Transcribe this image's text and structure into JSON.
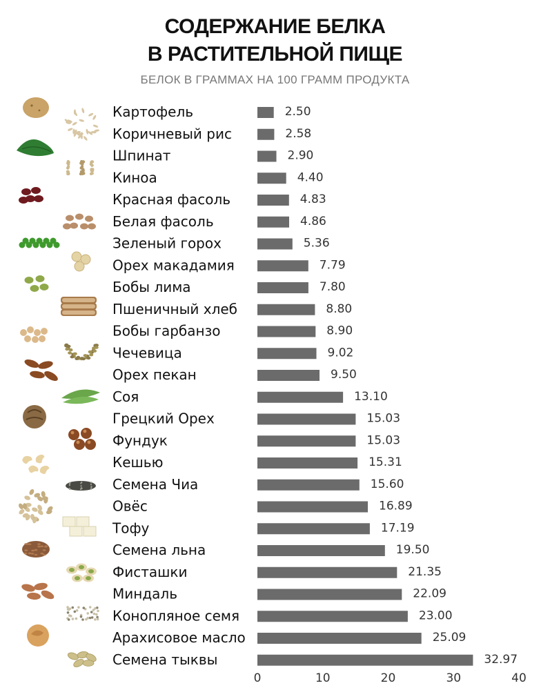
{
  "header": {
    "title_line1": "СОДЕРЖАНИЕ БЕЛКА",
    "title_line2": "В РАСТИТЕЛЬНОЙ  ПИЩЕ",
    "subtitle": "БЕЛОК В ГРАММАХ НА 100 ГРАММ ПРОДУКТА"
  },
  "chart_data": {
    "type": "bar",
    "orientation": "horizontal",
    "title": "СОДЕРЖАНИЕ БЕЛКА В РАСТИТЕЛЬНОЙ  ПИЩЕ",
    "subtitle": "БЕЛОК В ГРАММАХ НА 100 ГРАММ ПРОДУКТА",
    "categories": [
      "Картофель",
      "Коричневый рис",
      "Шпинат",
      "Киноа",
      "Красная фасоль",
      "Белая фасоль",
      "Зеленый горох",
      "Орех макадамия",
      "Бобы лима",
      "Пшеничный хлеб",
      "Бобы гарбанзо",
      "Чечевица",
      "Орех пекан",
      "Соя",
      "Грецкий Орех",
      "Фундук",
      "Кешью",
      "Семена Чиа",
      "Овёс",
      "Тофу",
      "Семена льна",
      "Фисташки",
      "Миндаль",
      "Конопляное семя",
      "Арахисовое масло",
      "Семена тыквы"
    ],
    "values": [
      2.5,
      2.58,
      2.9,
      4.4,
      4.83,
      4.86,
      5.36,
      7.79,
      7.8,
      8.8,
      8.9,
      9.02,
      9.5,
      13.1,
      15.03,
      15.03,
      15.31,
      15.6,
      16.89,
      17.19,
      19.5,
      21.35,
      22.09,
      23.0,
      25.09,
      32.97
    ],
    "value_labels": [
      "2.50",
      "2.58",
      "2.90",
      "4.40",
      "4.83",
      "4.86",
      "5.36",
      "7.79",
      "7.80",
      "8.80",
      "8.90",
      "9.02",
      "9.50",
      "13.10",
      "15.03",
      "15.03",
      "15.31",
      "15.60",
      "16.89",
      "17.19",
      "19.50",
      "21.35",
      "22.09",
      "23.00",
      "25.09",
      "32.97"
    ],
    "xticks": [
      "0",
      "10",
      "20",
      "30",
      "40"
    ],
    "xlim": [
      0,
      40
    ],
    "grid": false,
    "bar_color": "#6b6b6b"
  }
}
